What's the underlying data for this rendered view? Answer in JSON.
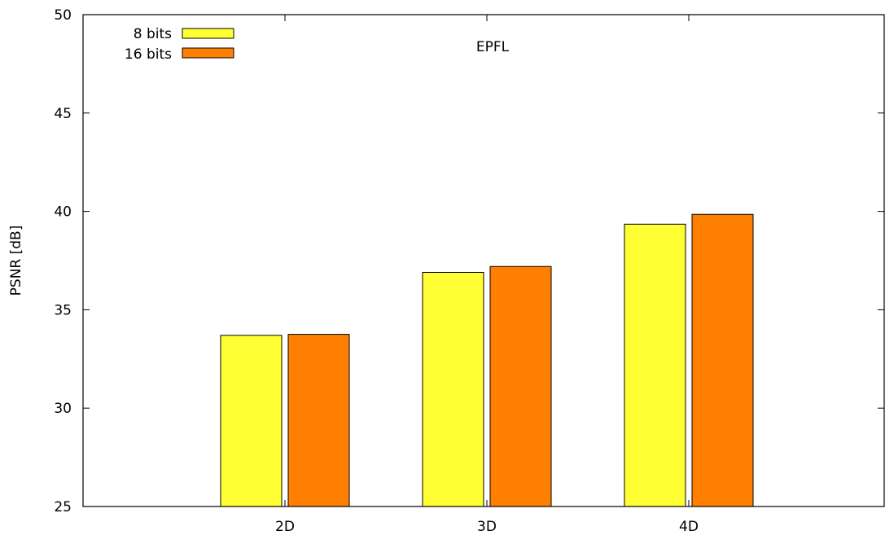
{
  "chart_data": {
    "type": "bar",
    "title": "",
    "annotation": "EPFL",
    "xlabel": "",
    "ylabel": "PSNR [dB]",
    "ylim": [
      25,
      50
    ],
    "yticks": [
      25,
      30,
      35,
      40,
      45,
      50
    ],
    "categories": [
      "2D",
      "3D",
      "4D"
    ],
    "series": [
      {
        "name": "8 bits",
        "color": "#ffff33",
        "values": [
          33.7,
          36.9,
          39.35
        ]
      },
      {
        "name": "16 bits",
        "color": "#ff7f00",
        "values": [
          33.75,
          37.2,
          39.85
        ]
      }
    ],
    "legend_position": "top-left",
    "grid": false
  }
}
